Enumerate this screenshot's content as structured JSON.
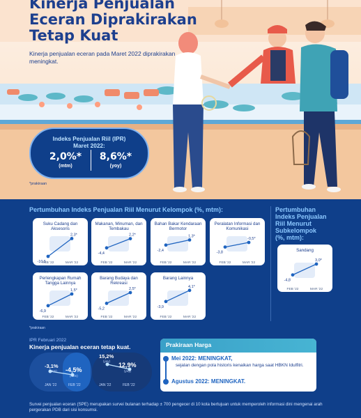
{
  "hero": {
    "title_lines": [
      "Kinerja Penjualan",
      "Eceran Diprakirakan",
      "Tetap Kuat"
    ],
    "subtitle": "Kinerja penjualan eceran pada Maret 2022 diprakirakan meningkat.",
    "ipr_title_line1": "Indeks Penjualan Riil (IPR)",
    "ipr_title_line2": "Maret 2022:",
    "mtm_value": "2,0%*",
    "mtm_label": "(mtm)",
    "yoy_value": "8,6%*",
    "yoy_label": "(yoy)",
    "note": "*prakiraan"
  },
  "groups_section": {
    "title": "Pertumbuhan Indeks Penjualan Riil Menurut Kelompok (%, mtm):",
    "note": "*prakiraan"
  },
  "subgroup_section": {
    "title_lines": [
      "Pertumbuhan",
      "Indeks Penjualan",
      "Riil Menurut",
      "Subkelompok",
      "(%, mtm):"
    ]
  },
  "chart_data": [
    {
      "type": "line",
      "title": "Suku Cadang dan Aksesoris",
      "categories": [
        "FEB '22",
        "MAR '22"
      ],
      "values": [
        -10.5,
        2.3
      ],
      "value_labels": [
        "-10,5",
        "2,3*"
      ]
    },
    {
      "type": "line",
      "title": "Makanan, Minuman, dan Tembakau",
      "categories": [
        "FEB '22",
        "MAR '22"
      ],
      "values": [
        -4.4,
        2.2
      ],
      "value_labels": [
        "-4,4",
        "2,2*"
      ]
    },
    {
      "type": "line",
      "title": "Bahan Bakar Kendaraan Bermotor",
      "categories": [
        "FEB '22",
        "MAR '22"
      ],
      "values": [
        -2.4,
        1.3
      ],
      "value_labels": [
        "-2,4",
        "1,3*"
      ]
    },
    {
      "type": "line",
      "title": "Peralatan Informasi dan Komunikasi",
      "categories": [
        "FEB '22",
        "MAR '22"
      ],
      "values": [
        -3.8,
        -0.5
      ],
      "value_labels": [
        "-3,8",
        "-0,5*"
      ]
    },
    {
      "type": "line",
      "title": "Perlengkapan Rumah Tangga Lainnya",
      "categories": [
        "FEB '22",
        "MAR '22"
      ],
      "values": [
        -6.9,
        1.5
      ],
      "value_labels": [
        "-6,9",
        "1,5*"
      ]
    },
    {
      "type": "line",
      "title": "Barang Budaya dan Rekreasi",
      "categories": [
        "FEB '22",
        "MAR '22"
      ],
      "values": [
        -5.2,
        2.5
      ],
      "value_labels": [
        "-5,2",
        "2,5*"
      ]
    },
    {
      "type": "line",
      "title": "Barang Lainnya",
      "categories": [
        "FEB '22",
        "MAR '22"
      ],
      "values": [
        -3.9,
        4.1
      ],
      "value_labels": [
        "-3,9",
        "4,1*"
      ]
    },
    {
      "type": "line",
      "title": "Sandang",
      "categories": [
        "FEB '22",
        "MAR '22"
      ],
      "values": [
        -4.8,
        3.0
      ],
      "value_labels": [
        "-4,8",
        "3,0*"
      ]
    }
  ],
  "bottom": {
    "head1": "IPR Februari 2022",
    "head2": "Kinerja penjualan eceran tetap kuat.",
    "mtm_jan": "-3,1%",
    "mtm_jan_unit": "(mtm)",
    "mtm_feb": "-4,5%",
    "mtm_feb_unit": "(mtm)",
    "mtm_jan_label": "JAN '22",
    "mtm_feb_label": "FEB '22",
    "yoy_jan": "15,2%",
    "yoy_jan_unit": "(yoy)",
    "yoy_feb": "12,9%",
    "yoy_feb_unit": "(yoy)",
    "yoy_jan_label": "JAN '22",
    "yoy_feb_label": "FEB '22"
  },
  "prakiraan": {
    "title": "Prakiraan Harga",
    "mei_label": "Mei 2022: MENINGKAT,",
    "mei_desc": "sejalan dengan pola historis kenaikan harga saat HBKN Idulfitri.",
    "agustus_label": "Agustus 2022: MENINGKAT."
  },
  "footer": "Survei penjualan eceran (SPE) merupakan survei bulanan terhadap ± 700 pengecer di 10 kota bertujuan untuk memperoleh informasi dini mengenai arah pergerakan PDB dari sisi konsumsi."
}
